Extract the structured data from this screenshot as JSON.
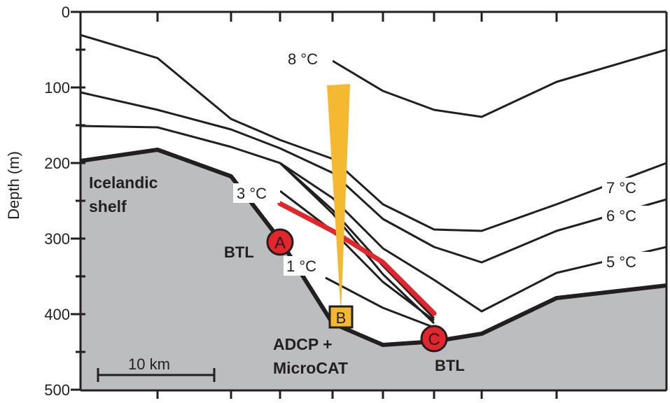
{
  "axis": {
    "ylabel": "Depth (m)",
    "yticks": [
      "0",
      "100",
      "200",
      "300",
      "400",
      "500"
    ]
  },
  "labels": {
    "shelf_line1": "Icelandic",
    "shelf_line2": "shelf",
    "scale_bar": "10 km",
    "adcp_line1": "ADCP +",
    "adcp_line2": "MicroCAT",
    "btl_a": "BTL",
    "btl_c": "BTL"
  },
  "isotherms": {
    "t8": "8 °C",
    "t7": "7 °C",
    "t6": "6 °C",
    "t5": "5 °C",
    "t3": "3 °C",
    "t1": "1 °C"
  },
  "markers": {
    "a": "A",
    "b": "B",
    "c": "C"
  },
  "colors": {
    "seabed": "#bbbdbf",
    "isotherm": "#231f20",
    "red_line": "#e2262b",
    "marker_red": "#e2262b",
    "marker_b": "#f4b931",
    "beam": "#f4b931"
  }
}
